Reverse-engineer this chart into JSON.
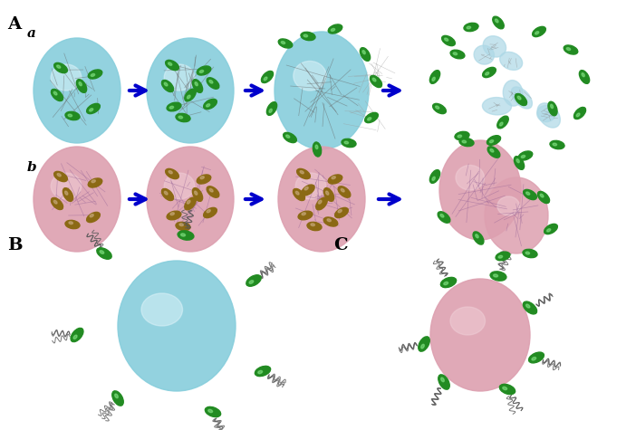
{
  "bg_color": "#ffffff",
  "title_A": "A",
  "title_a": "a",
  "title_b": "b",
  "title_B": "B",
  "title_C": "C",
  "cyan_color": "#87CEDC",
  "cyan_light": "#ADD8E6",
  "cyan_highlight": "#E0F4FA",
  "pink_color": "#DDA0B0",
  "pink_light": "#E8B4C0",
  "pink_highlight": "#F0D0D8",
  "green_bact": "#228B22",
  "green_bact2": "#2E8B57",
  "brown_bact": "#8B6914",
  "arrow_color": "#0000CC",
  "network_color": "#888888",
  "filament_color": "#555555"
}
